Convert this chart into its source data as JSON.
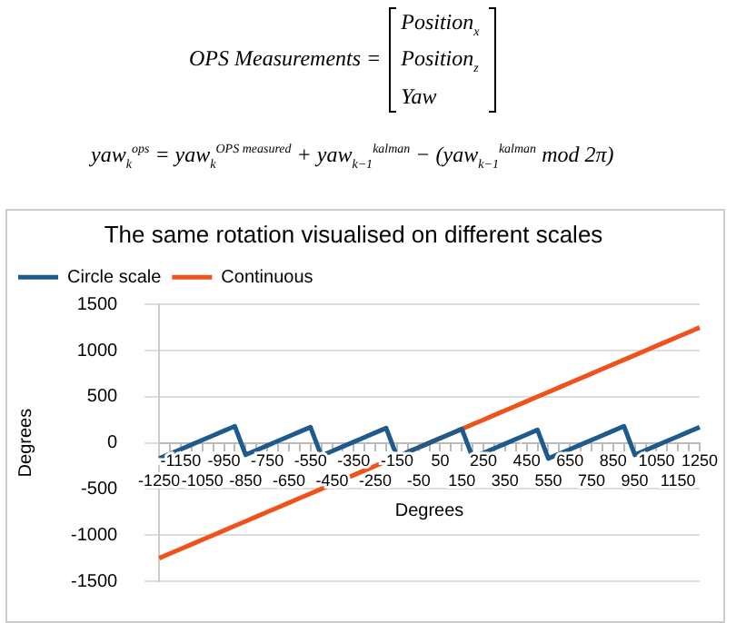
{
  "chart_data": {
    "type": "line",
    "title": "The same rotation visualised on different scales",
    "xlabel": "Degrees",
    "ylabel": "Degrees",
    "annotations": [
      "OPS Measurements =",
      "Position$_{x}$",
      "Position$_{z}$",
      "Yaw",
      "yaw$_{k}$$^{ops}$ = yaw$_{k}$$^{OPS measured}$ + yaw$_{k−1}$$^{kalman}$ − (yaw$_{k−1}$$^{kalman}$  mod  2π)"
    ],
    "categories": [
      "-1250",
      null,
      "-1150",
      null,
      "-1050",
      null,
      "-950",
      null,
      "-850",
      null,
      "-750",
      null,
      "-650",
      null,
      "-550",
      null,
      "-450",
      null,
      "-350",
      null,
      "-250",
      null,
      "-150",
      null,
      "-50",
      null,
      "50",
      null,
      "150",
      null,
      "250",
      null,
      "350",
      null,
      "450",
      null,
      "550",
      null,
      "650",
      null,
      "750",
      null,
      "850",
      null,
      "950",
      null,
      "1050",
      null,
      "1150",
      null,
      "1250"
    ],
    "series": [
      {
        "name": "Circle scale",
        "color": "#1f5a8c",
        "values": [
          -170,
          -120,
          -70,
          -20,
          30,
          80,
          130,
          180,
          -130,
          -80,
          -30,
          20,
          70,
          120,
          170,
          -140,
          -90,
          -40,
          10,
          60,
          110,
          160,
          -150,
          -100,
          -50,
          0,
          50,
          100,
          150,
          -160,
          -110,
          -60,
          -10,
          40,
          90,
          140,
          -170,
          -120,
          -70,
          -20,
          30,
          80,
          130,
          180,
          -130,
          -80,
          -30,
          20,
          70,
          120,
          170
        ]
      },
      {
        "name": "Continuous",
        "color": "#f0521c",
        "values": [
          -1250,
          -1200,
          -1150,
          -1100,
          -1050,
          -1000,
          -950,
          -900,
          -850,
          -800,
          -750,
          -700,
          -650,
          -600,
          -550,
          -500,
          -450,
          -400,
          -350,
          -300,
          -250,
          -200,
          -150,
          -100,
          -50,
          0,
          50,
          100,
          150,
          200,
          250,
          300,
          350,
          400,
          450,
          500,
          550,
          600,
          650,
          700,
          750,
          800,
          850,
          900,
          950,
          1000,
          1050,
          1100,
          1150,
          1200,
          1250
        ]
      }
    ],
    "ylim": [
      -1500,
      1500
    ],
    "yticks": [
      -1500,
      -1000,
      -500,
      0,
      500,
      1000,
      1500
    ],
    "grid": "y",
    "legend": "top left",
    "marker": "none",
    "line_style": "solid"
  }
}
